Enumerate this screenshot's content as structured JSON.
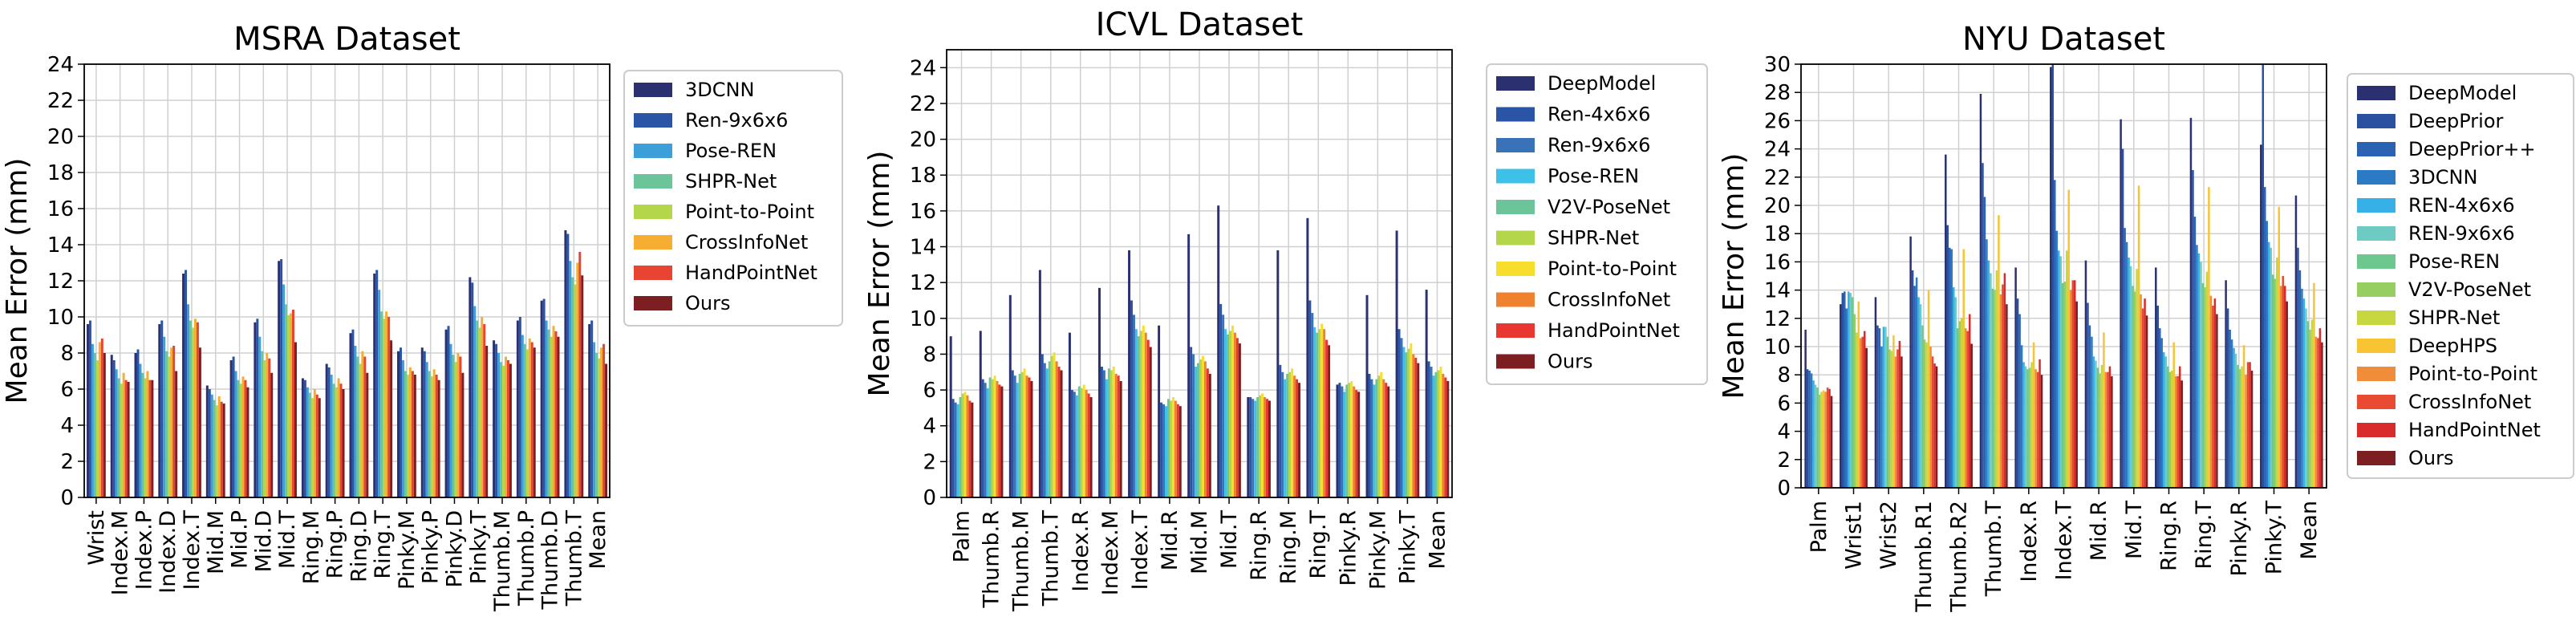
{
  "chart_data": [
    {
      "type": "bar",
      "title": "MSRA Dataset",
      "xlabel": "",
      "ylabel": "Mean Error (mm)",
      "ylim": [
        0,
        24
      ],
      "yticks": [
        0,
        2,
        4,
        6,
        8,
        10,
        12,
        14,
        16,
        18,
        20,
        22,
        24
      ],
      "grid": true,
      "legend_position": "right",
      "categories": [
        "Wrist",
        "Index.M",
        "Index.P",
        "Index.D",
        "Index.T",
        "Mid.M",
        "Mid.P",
        "Mid.D",
        "Mid.T",
        "Ring.M",
        "Ring.P",
        "Ring.D",
        "Ring.T",
        "Pinky.M",
        "Pinky.P",
        "Pinky.D",
        "Pinky.T",
        "Thumb.M",
        "Thumb.P",
        "Thumb.D",
        "Thumb.T",
        "Mean"
      ],
      "series": [
        {
          "name": "3DCNN",
          "color": "#2b3170",
          "values": [
            9.6,
            7.9,
            8.0,
            9.6,
            12.4,
            6.2,
            7.6,
            9.7,
            13.1,
            6.6,
            7.4,
            9.1,
            12.4,
            8.1,
            8.3,
            9.3,
            12.2,
            8.7,
            9.8,
            10.9,
            14.8,
            9.6
          ]
        },
        {
          "name": "Ren-9x6x6",
          "color": "#2a55a6",
          "values": [
            9.8,
            7.6,
            8.2,
            9.8,
            12.6,
            6.0,
            7.8,
            9.9,
            13.2,
            6.5,
            7.2,
            9.3,
            12.6,
            8.3,
            8.1,
            9.5,
            11.9,
            8.5,
            10.0,
            11.0,
            14.6,
            9.8
          ]
        },
        {
          "name": "Pose-REN",
          "color": "#3d9fd8",
          "values": [
            8.5,
            7.1,
            7.4,
            8.9,
            10.7,
            5.7,
            7.0,
            8.9,
            11.8,
            6.1,
            6.8,
            8.4,
            11.5,
            7.6,
            7.5,
            8.5,
            10.6,
            8.0,
            9.0,
            9.8,
            13.1,
            8.6
          ]
        },
        {
          "name": "SHPR-Net",
          "color": "#6cc49a",
          "values": [
            8.0,
            6.6,
            6.9,
            8.1,
            9.8,
            5.4,
            6.5,
            8.1,
            10.7,
            5.8,
            6.3,
            7.8,
            10.3,
            7.0,
            7.0,
            7.9,
            9.8,
            7.5,
            8.5,
            9.3,
            12.2,
            8.0
          ]
        },
        {
          "name": "Point-to-Point",
          "color": "#b4d64a",
          "values": [
            7.6,
            6.3,
            6.6,
            7.8,
            9.4,
            5.1,
            6.3,
            7.6,
            10.1,
            5.5,
            6.1,
            7.4,
            9.9,
            6.8,
            6.7,
            7.5,
            9.4,
            7.3,
            8.2,
            8.9,
            11.8,
            7.7
          ]
        },
        {
          "name": "CrossInfoNet",
          "color": "#f5ad32",
          "values": [
            8.6,
            6.9,
            7.0,
            8.3,
            9.9,
            5.6,
            6.7,
            8.0,
            10.2,
            6.0,
            6.6,
            8.1,
            10.3,
            7.2,
            7.1,
            8.0,
            10.0,
            7.8,
            8.8,
            9.5,
            13.0,
            8.3
          ]
        },
        {
          "name": "HandPointNet",
          "color": "#e84432",
          "values": [
            8.8,
            6.5,
            6.5,
            8.4,
            9.7,
            5.3,
            6.5,
            7.7,
            10.4,
            5.7,
            6.3,
            7.8,
            10.0,
            7.0,
            6.8,
            7.8,
            9.6,
            7.6,
            8.6,
            9.2,
            13.6,
            8.5
          ]
        },
        {
          "name": "Ours",
          "color": "#7d1f22",
          "values": [
            8.0,
            6.4,
            6.5,
            7.0,
            8.3,
            5.2,
            6.1,
            6.9,
            8.6,
            5.5,
            6.0,
            6.9,
            8.7,
            6.8,
            6.5,
            6.9,
            8.4,
            7.4,
            8.3,
            8.9,
            12.3,
            7.4
          ]
        }
      ]
    },
    {
      "type": "bar",
      "title": "ICVL Dataset",
      "xlabel": "",
      "ylabel": "Mean Error (mm)",
      "ylim": [
        0,
        25
      ],
      "yticks": [
        0,
        2,
        4,
        6,
        8,
        10,
        12,
        14,
        16,
        18,
        20,
        22,
        24
      ],
      "grid": true,
      "legend_position": "right",
      "categories": [
        "Palm",
        "Thumb.R",
        "Thumb.M",
        "Thumb.T",
        "Index.R",
        "Index.M",
        "Index.T",
        "Mid.R",
        "Mid.M",
        "Mid.T",
        "Ring.R",
        "Ring.M",
        "Ring.T",
        "Pinky.R",
        "Pinky.M",
        "Pinky.T",
        "Mean"
      ],
      "series": [
        {
          "name": "DeepModel",
          "color": "#2b3170",
          "values": [
            9.0,
            9.3,
            11.3,
            12.7,
            9.2,
            11.7,
            13.8,
            9.6,
            14.7,
            16.3,
            5.6,
            13.8,
            15.6,
            6.3,
            11.3,
            14.9,
            11.6
          ]
        },
        {
          "name": "Ren-4x6x6",
          "color": "#2a55a6",
          "values": [
            5.5,
            6.6,
            7.1,
            8.0,
            6.0,
            7.3,
            11.0,
            5.3,
            8.4,
            10.8,
            5.6,
            7.4,
            11.0,
            6.4,
            6.9,
            9.4,
            7.6
          ]
        },
        {
          "name": "Ren-9x6x6",
          "color": "#3a72b8",
          "values": [
            5.3,
            6.4,
            6.8,
            7.5,
            5.9,
            7.1,
            10.2,
            5.2,
            8.0,
            10.2,
            5.5,
            7.0,
            10.3,
            6.2,
            6.6,
            8.9,
            7.3
          ]
        },
        {
          "name": "Pose-REN",
          "color": "#3ec1e8",
          "values": [
            5.2,
            6.1,
            6.4,
            7.2,
            5.7,
            6.6,
            9.4,
            5.1,
            7.3,
            9.4,
            5.4,
            6.6,
            9.5,
            5.9,
            6.3,
            8.4,
            6.8
          ]
        },
        {
          "name": "V2V-PoseNet",
          "color": "#6cc49a",
          "values": [
            5.6,
            6.7,
            6.9,
            7.6,
            6.2,
            7.2,
            9.0,
            5.5,
            7.5,
            9.1,
            5.6,
            6.9,
            9.2,
            6.3,
            6.6,
            8.1,
            7.0
          ]
        },
        {
          "name": "SHPR-Net",
          "color": "#b4d64a",
          "values": [
            5.8,
            6.6,
            7.0,
            7.9,
            6.1,
            7.1,
            9.3,
            5.4,
            7.7,
            9.3,
            5.7,
            7.0,
            9.4,
            6.4,
            6.8,
            8.3,
            7.1
          ]
        },
        {
          "name": "Point-to-Point",
          "color": "#f8de2c",
          "values": [
            5.9,
            6.8,
            7.2,
            8.1,
            6.3,
            7.3,
            9.6,
            5.6,
            7.9,
            9.6,
            5.8,
            7.2,
            9.7,
            6.5,
            7.0,
            8.6,
            7.3
          ]
        },
        {
          "name": "CrossInfoNet",
          "color": "#f0822f",
          "values": [
            5.7,
            6.5,
            6.8,
            7.6,
            6.0,
            6.9,
            9.2,
            5.4,
            7.6,
            9.2,
            5.6,
            6.8,
            9.4,
            6.2,
            6.6,
            8.0,
            6.9
          ]
        },
        {
          "name": "HandPointNet",
          "color": "#e83631",
          "values": [
            5.4,
            6.3,
            6.7,
            7.3,
            5.8,
            6.8,
            8.8,
            5.2,
            7.2,
            8.9,
            5.5,
            6.6,
            8.8,
            6.0,
            6.4,
            7.8,
            6.7
          ]
        },
        {
          "name": "Ours",
          "color": "#7d1f22",
          "values": [
            5.3,
            6.2,
            6.5,
            7.1,
            5.6,
            6.5,
            8.4,
            5.1,
            6.9,
            8.6,
            5.4,
            6.4,
            8.5,
            5.9,
            6.2,
            7.5,
            6.5
          ]
        }
      ]
    },
    {
      "type": "bar",
      "title": "NYU Dataset",
      "xlabel": "",
      "ylabel": "Mean Error (mm)",
      "ylim": [
        0,
        30
      ],
      "yticks": [
        0,
        2,
        4,
        6,
        8,
        10,
        12,
        14,
        16,
        18,
        20,
        22,
        24,
        26,
        28,
        30
      ],
      "grid": true,
      "legend_position": "right",
      "categories": [
        "Palm",
        "Wrist1",
        "Wrist2",
        "Thumb.R1",
        "Thumb.R2",
        "Thumb.T",
        "Index.R",
        "Index.T",
        "Mid.R",
        "Mid.T",
        "Ring.R",
        "Ring.T",
        "Pinky.R",
        "Pinky.T",
        "Mean"
      ],
      "series": [
        {
          "name": "DeepModel",
          "color": "#2b3170",
          "values": [
            11.2,
            13.0,
            13.5,
            17.8,
            23.6,
            27.9,
            15.6,
            29.8,
            16.1,
            26.1,
            15.6,
            26.2,
            14.7,
            24.3,
            20.7
          ]
        },
        {
          "name": "DeepPrior",
          "color": "#2a50a0",
          "values": [
            8.4,
            13.8,
            11.5,
            15.4,
            18.6,
            23.0,
            13.4,
            30.0,
            13.1,
            24.0,
            12.9,
            22.5,
            12.7,
            30.0,
            17.0
          ]
        },
        {
          "name": "DeepPrior++",
          "color": "#2a62b4",
          "values": [
            8.3,
            13.9,
            11.3,
            14.3,
            17.0,
            20.6,
            12.3,
            21.8,
            11.5,
            18.4,
            11.3,
            19.2,
            11.2,
            21.3,
            15.4
          ]
        },
        {
          "name": "3DCNN",
          "color": "#2d7ac4",
          "values": [
            8.1,
            12.7,
            10.0,
            14.9,
            16.9,
            17.6,
            10.1,
            18.2,
            10.7,
            17.4,
            10.6,
            17.2,
            10.5,
            18.9,
            14.1
          ]
        },
        {
          "name": "REN-4x6x6",
          "color": "#36b0e6",
          "values": [
            7.6,
            13.9,
            11.4,
            13.5,
            14.2,
            16.1,
            8.9,
            16.8,
            9.3,
            16.3,
            9.6,
            16.6,
            9.9,
            17.4,
            13.4
          ]
        },
        {
          "name": "REN-9x6x6",
          "color": "#6ecbc4",
          "values": [
            7.3,
            13.8,
            11.4,
            13.0,
            13.5,
            15.2,
            8.6,
            16.4,
            9.0,
            15.7,
            9.3,
            16.0,
            9.5,
            17.0,
            12.7
          ]
        },
        {
          "name": "Pose-REN",
          "color": "#6cc88e",
          "values": [
            7.1,
            13.5,
            10.7,
            11.5,
            11.3,
            14.1,
            8.4,
            14.5,
            8.5,
            14.3,
            8.6,
            14.5,
            8.7,
            15.1,
            11.8
          ]
        },
        {
          "name": "V2V-PoseNet",
          "color": "#96ce62",
          "values": [
            6.6,
            12.3,
            9.8,
            10.5,
            11.8,
            14.0,
            8.5,
            14.6,
            8.1,
            13.9,
            8.2,
            14.2,
            8.4,
            14.8,
            11.2
          ]
        },
        {
          "name": "SHPR-Net",
          "color": "#c6d73f",
          "values": [
            6.8,
            11.0,
            9.7,
            10.3,
            12.0,
            15.4,
            8.9,
            16.8,
            8.7,
            15.5,
            8.3,
            15.3,
            8.6,
            16.3,
            11.9
          ]
        },
        {
          "name": "DeepHPS",
          "color": "#f7c434",
          "values": [
            6.9,
            13.2,
            10.8,
            14.0,
            16.9,
            19.3,
            10.3,
            21.1,
            11.0,
            21.4,
            10.3,
            21.3,
            10.1,
            19.9,
            14.5
          ]
        },
        {
          "name": "Point-to-Point",
          "color": "#f08d3a",
          "values": [
            6.8,
            10.6,
            9.3,
            10.0,
            11.3,
            13.7,
            8.4,
            14.0,
            8.2,
            13.7,
            7.9,
            13.6,
            8.0,
            14.3,
            10.7
          ]
        },
        {
          "name": "CrossInfoNet",
          "color": "#e84a32",
          "values": [
            7.1,
            10.7,
            9.8,
            9.3,
            11.1,
            14.4,
            8.2,
            14.7,
            8.2,
            12.7,
            7.9,
            12.9,
            8.9,
            15.0,
            10.6
          ]
        },
        {
          "name": "HandPointNet",
          "color": "#d92b2b",
          "values": [
            7.0,
            11.1,
            10.4,
            8.8,
            12.3,
            15.2,
            9.1,
            14.7,
            8.6,
            13.4,
            8.6,
            13.4,
            8.9,
            14.3,
            11.3
          ]
        },
        {
          "name": "Ours",
          "color": "#7d1f22",
          "values": [
            6.5,
            9.9,
            9.3,
            8.6,
            10.2,
            13.0,
            8.0,
            13.2,
            7.9,
            12.2,
            7.6,
            12.3,
            8.3,
            13.2,
            10.3
          ]
        }
      ]
    }
  ]
}
